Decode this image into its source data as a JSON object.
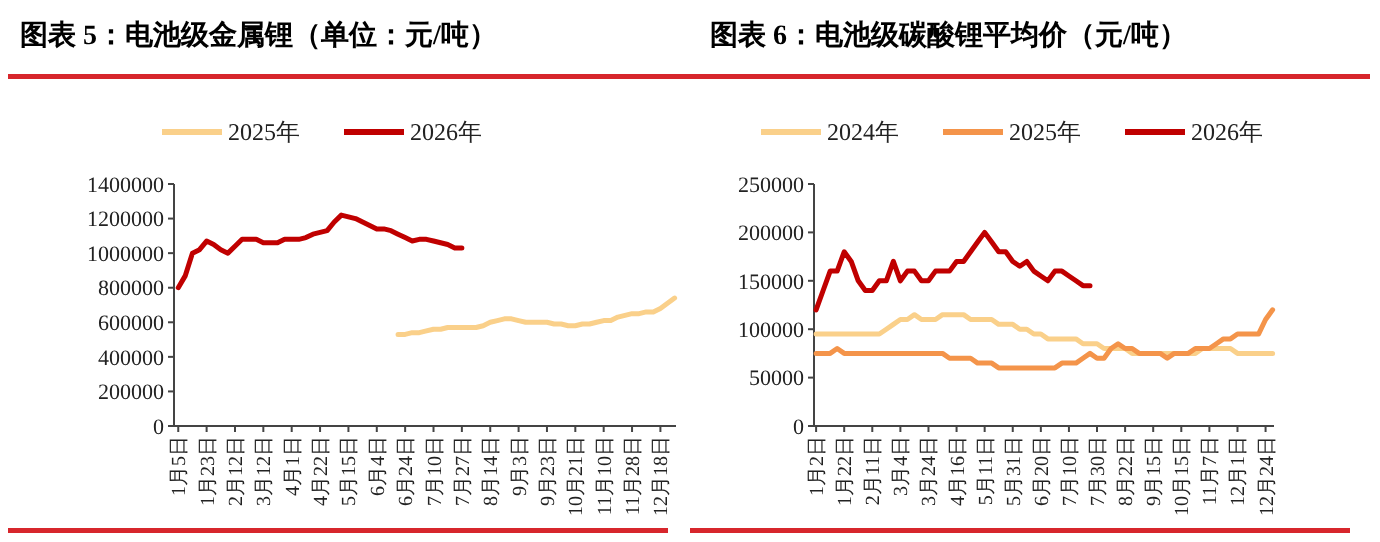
{
  "chart_data": [
    {
      "type": "line",
      "title": "图表 5：电池级金属锂（单位：元/吨）",
      "legend": "top",
      "ylim": [
        0,
        1400000
      ],
      "yticks": [
        0,
        200000,
        400000,
        600000,
        800000,
        1000000,
        1200000,
        1400000
      ],
      "categories": [
        "1月5日",
        null,
        null,
        null,
        "1月23日",
        null,
        null,
        null,
        "2月12日",
        null,
        null,
        null,
        "3月12日",
        null,
        null,
        null,
        "4月1日",
        null,
        null,
        null,
        "4月22日",
        null,
        null,
        null,
        "5月15日",
        null,
        null,
        null,
        "6月4日",
        null,
        null,
        null,
        "6月24日",
        null,
        null,
        null,
        "7月10日",
        null,
        null,
        null,
        "7月27日",
        null,
        null,
        null,
        "8月14日",
        null,
        null,
        null,
        "9月3日",
        null,
        null,
        null,
        "9月23日",
        null,
        null,
        null,
        "10月21日",
        null,
        null,
        null,
        "11月10日",
        null,
        null,
        null,
        "11月28日",
        null,
        null,
        null,
        "12月18日",
        null,
        null
      ],
      "series": [
        {
          "name": "2025年",
          "color": "#fad08a",
          "values": [
            null,
            null,
            null,
            null,
            null,
            null,
            null,
            null,
            null,
            null,
            null,
            null,
            null,
            null,
            null,
            null,
            null,
            null,
            null,
            null,
            null,
            null,
            null,
            null,
            null,
            null,
            null,
            null,
            null,
            null,
            null,
            530000,
            530000,
            540000,
            540000,
            550000,
            560000,
            560000,
            570000,
            570000,
            570000,
            570000,
            570000,
            580000,
            600000,
            610000,
            620000,
            620000,
            610000,
            600000,
            600000,
            600000,
            600000,
            590000,
            590000,
            580000,
            580000,
            590000,
            590000,
            600000,
            610000,
            610000,
            630000,
            640000,
            650000,
            650000,
            660000,
            660000,
            680000,
            710000,
            740000
          ]
        },
        {
          "name": "2026年",
          "color": "#c00000",
          "values": [
            800000,
            870000,
            1000000,
            1020000,
            1070000,
            1050000,
            1020000,
            1000000,
            1040000,
            1080000,
            1080000,
            1080000,
            1060000,
            1060000,
            1060000,
            1080000,
            1080000,
            1080000,
            1090000,
            1110000,
            1120000,
            1130000,
            1180000,
            1220000,
            1210000,
            1200000,
            1180000,
            1160000,
            1140000,
            1140000,
            1130000,
            1110000,
            1090000,
            1070000,
            1080000,
            1080000,
            1070000,
            1060000,
            1050000,
            1030000,
            1030000,
            null,
            null,
            null,
            null,
            null,
            null,
            null,
            null,
            null,
            null,
            null,
            null,
            null,
            null,
            null,
            null,
            null,
            null,
            null,
            null,
            null,
            null,
            null,
            null,
            null,
            null,
            null,
            null,
            null,
            null
          ]
        }
      ]
    },
    {
      "type": "line",
      "title": "图表 6：电池级碳酸锂平均价（元/吨）",
      "legend": "top",
      "ylim": [
        0,
        250000
      ],
      "yticks": [
        0,
        50000,
        100000,
        150000,
        200000,
        250000
      ],
      "categories": [
        "1月2日",
        null,
        null,
        null,
        "1月22日",
        null,
        null,
        null,
        "2月11日",
        null,
        null,
        null,
        "3月4日",
        null,
        null,
        null,
        "3月24日",
        null,
        null,
        null,
        "4月16日",
        null,
        null,
        null,
        "5月11日",
        null,
        null,
        null,
        "5月31日",
        null,
        null,
        null,
        "6月20日",
        null,
        null,
        null,
        "7月10日",
        null,
        null,
        null,
        "7月30日",
        null,
        null,
        null,
        "8月22日",
        null,
        null,
        null,
        "9月15日",
        null,
        null,
        null,
        "10月15日",
        null,
        null,
        null,
        "11月7日",
        null,
        null,
        null,
        "12月1日",
        null,
        null,
        null,
        "12月24日",
        null
      ],
      "series": [
        {
          "name": "2024年",
          "color": "#fad08a",
          "values": [
            95000,
            95000,
            95000,
            95000,
            95000,
            95000,
            95000,
            95000,
            95000,
            95000,
            100000,
            105000,
            110000,
            110000,
            115000,
            110000,
            110000,
            110000,
            115000,
            115000,
            115000,
            115000,
            110000,
            110000,
            110000,
            110000,
            105000,
            105000,
            105000,
            100000,
            100000,
            95000,
            95000,
            90000,
            90000,
            90000,
            90000,
            90000,
            85000,
            85000,
            85000,
            80000,
            80000,
            80000,
            80000,
            75000,
            75000,
            75000,
            75000,
            75000,
            75000,
            75000,
            75000,
            75000,
            75000,
            80000,
            80000,
            80000,
            80000,
            80000,
            75000,
            75000,
            75000,
            75000,
            75000,
            75000
          ]
        },
        {
          "name": "2025年",
          "color": "#f4944a",
          "values": [
            75000,
            75000,
            75000,
            80000,
            75000,
            75000,
            75000,
            75000,
            75000,
            75000,
            75000,
            75000,
            75000,
            75000,
            75000,
            75000,
            75000,
            75000,
            75000,
            70000,
            70000,
            70000,
            70000,
            65000,
            65000,
            65000,
            60000,
            60000,
            60000,
            60000,
            60000,
            60000,
            60000,
            60000,
            60000,
            65000,
            65000,
            65000,
            70000,
            75000,
            70000,
            70000,
            80000,
            85000,
            80000,
            80000,
            75000,
            75000,
            75000,
            75000,
            70000,
            75000,
            75000,
            75000,
            80000,
            80000,
            80000,
            85000,
            90000,
            90000,
            95000,
            95000,
            95000,
            95000,
            110000,
            120000
          ]
        },
        {
          "name": "2026年",
          "color": "#c00000",
          "values": [
            120000,
            140000,
            160000,
            160000,
            180000,
            170000,
            150000,
            140000,
            140000,
            150000,
            150000,
            170000,
            150000,
            160000,
            160000,
            150000,
            150000,
            160000,
            160000,
            160000,
            170000,
            170000,
            180000,
            190000,
            200000,
            190000,
            180000,
            180000,
            170000,
            165000,
            170000,
            160000,
            155000,
            150000,
            160000,
            160000,
            155000,
            150000,
            145000,
            145000,
            null,
            null,
            null,
            null,
            null,
            null,
            null,
            null,
            null,
            null,
            null,
            null,
            null,
            null,
            null,
            null,
            null,
            null,
            null,
            null,
            null,
            null,
            null,
            null,
            null,
            null
          ]
        }
      ]
    }
  ]
}
